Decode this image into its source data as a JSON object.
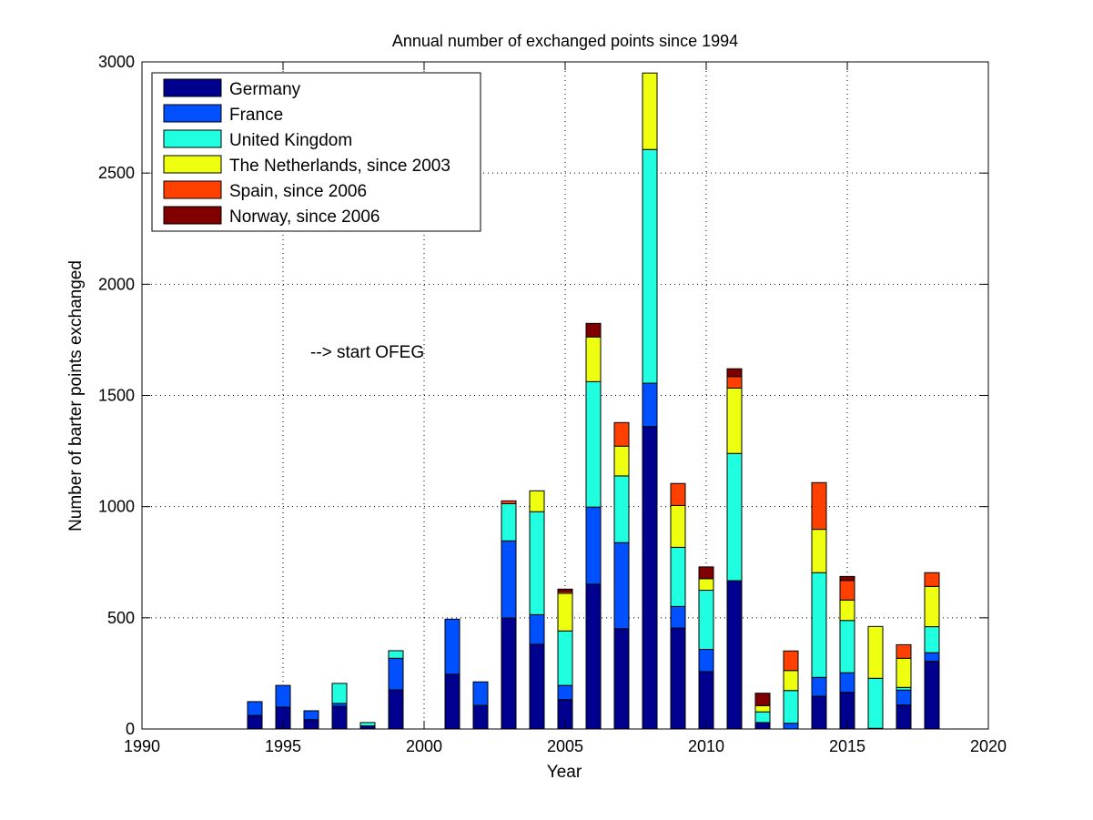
{
  "chart_data": {
    "type": "bar",
    "stacked": true,
    "title": "Annual number of exchanged points since 1994",
    "xlabel": "Year",
    "ylabel": "Number of barter points exchanged",
    "xlim": [
      1990,
      2020
    ],
    "ylim": [
      0,
      3000
    ],
    "xticks": [
      "1990",
      "1995",
      "2000",
      "2005",
      "2010",
      "2015",
      "2020"
    ],
    "yticks": [
      "0",
      "500",
      "1000",
      "1500",
      "2000",
      "2500",
      "3000"
    ],
    "grid": true,
    "legend_position": "top-left",
    "annotation": "--> start OFEG",
    "categories": [
      1994,
      1995,
      1996,
      1997,
      1998,
      1999,
      2001,
      2002,
      2003,
      2004,
      2005,
      2006,
      2007,
      2008,
      2009,
      2010,
      2011,
      2012,
      2013,
      2014,
      2015,
      2016,
      2017,
      2018
    ],
    "series": [
      {
        "name": "Germany",
        "color": "#00008f",
        "values": [
          61,
          98,
          42,
          102,
          14,
          176,
          246,
          106,
          499,
          381,
          132,
          651,
          451,
          1360,
          454,
          258,
          667,
          29,
          0,
          147,
          165,
          3,
          108,
          304
        ]
      },
      {
        "name": "France",
        "color": "#0050ff",
        "values": [
          62,
          98,
          40,
          13,
          0,
          142,
          248,
          106,
          347,
          133,
          64,
          347,
          387,
          195,
          97,
          100,
          0,
          0,
          26,
          85,
          88,
          0,
          67,
          39
        ]
      },
      {
        "name": "United Kingdom",
        "color": "#20ffdf",
        "values": [
          0,
          0,
          0,
          90,
          15,
          34,
          0,
          0,
          167,
          463,
          245,
          564,
          300,
          1051,
          266,
          266,
          572,
          48,
          147,
          471,
          235,
          225,
          12,
          117
        ]
      },
      {
        "name": "The Netherlands, since 2003",
        "color": "#efff10",
        "values": [
          0,
          0,
          0,
          0,
          0,
          0,
          0,
          0,
          0,
          94,
          169,
          201,
          134,
          344,
          188,
          52,
          294,
          28,
          90,
          195,
          92,
          233,
          131,
          181
        ]
      },
      {
        "name": "Spain, since 2006",
        "color": "#ff4000",
        "values": [
          0,
          0,
          0,
          0,
          0,
          0,
          0,
          0,
          13,
          0,
          8,
          0,
          106,
          0,
          99,
          0,
          52,
          0,
          88,
          210,
          88,
          0,
          61,
          62
        ]
      },
      {
        "name": "Norway, since 2006",
        "color": "#800000",
        "values": [
          0,
          0,
          0,
          0,
          0,
          0,
          0,
          0,
          0,
          0,
          11,
          61,
          0,
          0,
          0,
          53,
          35,
          56,
          0,
          0,
          18,
          0,
          0,
          0
        ]
      }
    ]
  }
}
